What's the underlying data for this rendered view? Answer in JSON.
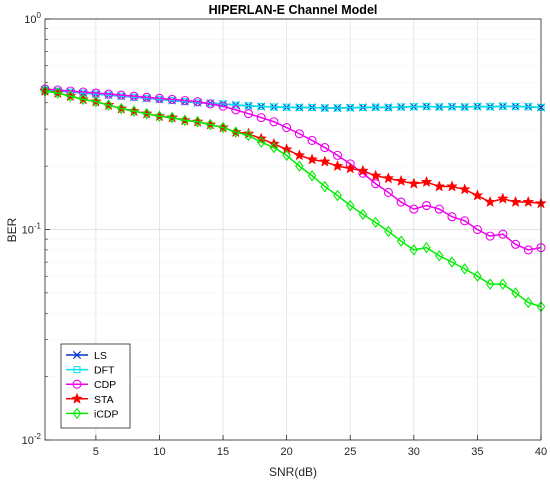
{
  "chart_data": {
    "type": "line",
    "title": "HIPERLAN-E Channel Model",
    "xlabel": "SNR(dB)",
    "ylabel": "BER",
    "xlim": [
      1,
      40
    ],
    "ylim": [
      0.01,
      1
    ],
    "yscale": "log",
    "grid": true,
    "legend_position": "bottom-left",
    "x_ticks": [
      "5",
      "10",
      "15",
      "20",
      "25",
      "30",
      "35",
      "40"
    ],
    "y_ticks": [
      {
        "base": "10",
        "exp": "0"
      },
      {
        "base": "10",
        "exp": "-1"
      },
      {
        "base": "10",
        "exp": "-2"
      }
    ],
    "x": [
      1,
      2,
      3,
      4,
      5,
      6,
      7,
      8,
      9,
      10,
      11,
      12,
      13,
      14,
      15,
      16,
      17,
      18,
      19,
      20,
      21,
      22,
      23,
      24,
      25,
      26,
      27,
      28,
      29,
      30,
      31,
      32,
      33,
      34,
      35,
      36,
      37,
      38,
      39,
      40
    ],
    "series": [
      {
        "name": "LS",
        "color": "#0033cc",
        "marker": "x",
        "values": [
          0.46,
          0.455,
          0.45,
          0.445,
          0.44,
          0.435,
          0.43,
          0.425,
          0.42,
          0.415,
          0.41,
          0.405,
          0.4,
          0.398,
          0.395,
          0.39,
          0.387,
          0.384,
          0.382,
          0.381,
          0.38,
          0.38,
          0.378,
          0.378,
          0.379,
          0.38,
          0.381,
          0.38,
          0.382,
          0.383,
          0.384,
          0.382,
          0.383,
          0.382,
          0.384,
          0.383,
          0.385,
          0.384,
          0.383,
          0.38
        ]
      },
      {
        "name": "DFT",
        "color": "#00e5ee",
        "marker": "square",
        "values": [
          0.46,
          0.455,
          0.45,
          0.445,
          0.44,
          0.435,
          0.43,
          0.425,
          0.42,
          0.415,
          0.41,
          0.405,
          0.4,
          0.398,
          0.395,
          0.39,
          0.387,
          0.384,
          0.382,
          0.381,
          0.38,
          0.38,
          0.378,
          0.378,
          0.379,
          0.38,
          0.381,
          0.38,
          0.382,
          0.383,
          0.384,
          0.382,
          0.383,
          0.382,
          0.384,
          0.383,
          0.385,
          0.384,
          0.383,
          0.38
        ]
      },
      {
        "name": "CDP",
        "color": "#ee00ee",
        "marker": "circle",
        "values": [
          0.465,
          0.46,
          0.455,
          0.45,
          0.445,
          0.44,
          0.435,
          0.43,
          0.425,
          0.42,
          0.415,
          0.41,
          0.405,
          0.395,
          0.385,
          0.37,
          0.355,
          0.34,
          0.325,
          0.305,
          0.285,
          0.265,
          0.245,
          0.225,
          0.205,
          0.185,
          0.165,
          0.15,
          0.135,
          0.125,
          0.13,
          0.125,
          0.115,
          0.11,
          0.1,
          0.093,
          0.095,
          0.085,
          0.08,
          0.082
        ]
      },
      {
        "name": "STA",
        "color": "#ff0000",
        "marker": "star",
        "values": [
          0.455,
          0.445,
          0.43,
          0.415,
          0.405,
          0.39,
          0.375,
          0.365,
          0.355,
          0.345,
          0.34,
          0.33,
          0.325,
          0.315,
          0.305,
          0.29,
          0.285,
          0.27,
          0.255,
          0.24,
          0.225,
          0.215,
          0.21,
          0.2,
          0.195,
          0.19,
          0.18,
          0.175,
          0.17,
          0.165,
          0.168,
          0.16,
          0.16,
          0.155,
          0.145,
          0.135,
          0.14,
          0.135,
          0.135,
          0.133
        ]
      },
      {
        "name": "iCDP",
        "color": "#00ee00",
        "marker": "diamond",
        "values": [
          0.455,
          0.445,
          0.43,
          0.415,
          0.405,
          0.39,
          0.375,
          0.365,
          0.355,
          0.345,
          0.34,
          0.33,
          0.325,
          0.315,
          0.305,
          0.29,
          0.28,
          0.26,
          0.245,
          0.225,
          0.2,
          0.18,
          0.16,
          0.145,
          0.13,
          0.118,
          0.108,
          0.098,
          0.088,
          0.08,
          0.082,
          0.075,
          0.07,
          0.065,
          0.06,
          0.055,
          0.055,
          0.05,
          0.045,
          0.043
        ]
      }
    ]
  }
}
